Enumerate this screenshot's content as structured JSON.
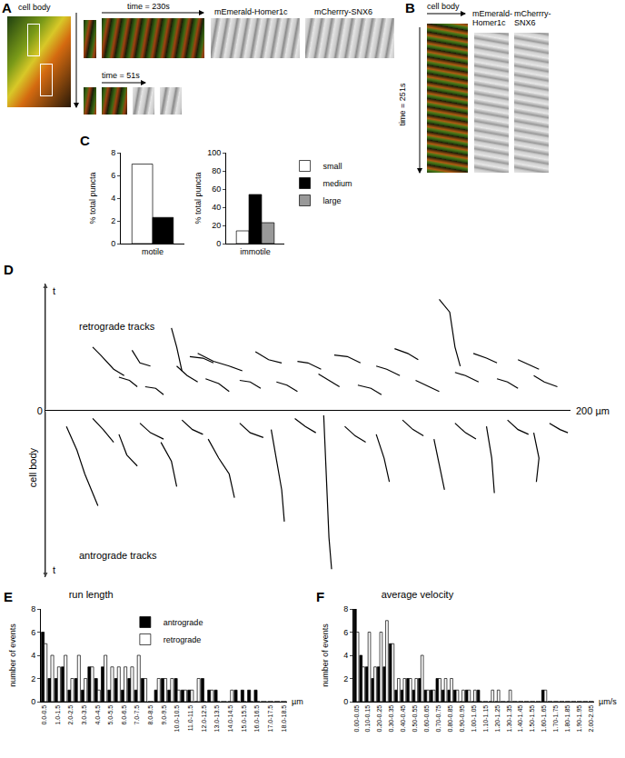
{
  "panel_labels": [
    "A",
    "B",
    "C",
    "D",
    "E",
    "F"
  ],
  "images": {
    "A": {
      "cell_body": "cell body",
      "time_long": "time = 230s",
      "time_short": "time = 51s",
      "channels": [
        "mEmerald-Homer1c",
        "mCherrry-SNX6"
      ]
    },
    "B": {
      "cell_body": "cell body",
      "time": "time = 251s",
      "channels": [
        "mEmerald-Homer1c",
        "mCherrry-SNX6"
      ]
    }
  },
  "chart_data": [
    {
      "type": "bar",
      "categories": [
        "motile"
      ],
      "series": [
        {
          "name": "small",
          "color": "#ffffff",
          "values": [
            7
          ]
        },
        {
          "name": "medium",
          "color": "#000000",
          "values": [
            2.3
          ]
        }
      ],
      "y_label": "% total puncta",
      "ylim": [
        0,
        8
      ],
      "yticks": [
        0,
        2,
        4,
        6,
        8
      ]
    },
    {
      "type": "bar",
      "categories": [
        "immotile"
      ],
      "series": [
        {
          "name": "small",
          "color": "#ffffff",
          "values": [
            14
          ]
        },
        {
          "name": "medium",
          "color": "#000000",
          "values": [
            54
          ]
        },
        {
          "name": "large",
          "color": "#999999",
          "values": [
            23
          ]
        }
      ],
      "y_label": "% total puncta",
      "ylim": [
        0,
        100
      ],
      "yticks": [
        0,
        20,
        40,
        60,
        80,
        100
      ],
      "legend": "right"
    },
    {
      "type": "line",
      "y_label": "t",
      "xlim": [
        0,
        200
      ],
      "ylim": [
        -105,
        80
      ],
      "yticks": [
        0
      ],
      "tick_labels": "y",
      "annotations": [
        {
          "text": "cell body"
        },
        {
          "text": "200 µm"
        }
      ],
      "series": [
        {
          "name": "retrograde tracks",
          "color": "#000000",
          "paths": [
            [
              [
                30,
                22
              ],
              [
                26,
                26
              ],
              [
                21,
                35
              ],
              [
                18,
                40
              ]
            ],
            [
              [
                35,
                15
              ],
              [
                32,
                19
              ],
              [
                28,
                21
              ]
            ],
            [
              [
                40,
                28
              ],
              [
                36,
                30
              ],
              [
                33,
                38
              ]
            ],
            [
              [
                45,
                10
              ],
              [
                42,
                14
              ],
              [
                38,
                15
              ]
            ],
            [
              [
                52,
                25
              ],
              [
                50,
                40
              ],
              [
                48,
                52
              ]
            ],
            [
              [
                58,
                18
              ],
              [
                54,
                22
              ],
              [
                50,
                28
              ]
            ],
            [
              [
                64,
                30
              ],
              [
                60,
                33
              ],
              [
                55,
                34
              ]
            ],
            [
              [
                70,
                12
              ],
              [
                66,
                17
              ],
              [
                61,
                20
              ]
            ],
            [
              [
                75,
                25
              ],
              [
                70,
                28
              ],
              [
                64,
                31
              ],
              [
                58,
                36
              ]
            ],
            [
              [
                82,
                14
              ],
              [
                78,
                18
              ],
              [
                74,
                19
              ]
            ],
            [
              [
                90,
                30
              ],
              [
                85,
                32
              ],
              [
                80,
                37
              ]
            ],
            [
              [
                96,
                12
              ],
              [
                92,
                16
              ],
              [
                88,
                18
              ]
            ],
            [
              [
                105,
                26
              ],
              [
                100,
                30
              ],
              [
                96,
                31
              ]
            ],
            [
              [
                112,
                15
              ],
              [
                108,
                19
              ],
              [
                104,
                23
              ]
            ],
            [
              [
                120,
                30
              ],
              [
                115,
                34
              ],
              [
                110,
                35
              ]
            ],
            [
              [
                128,
                10
              ],
              [
                124,
                14
              ],
              [
                119,
                16
              ]
            ],
            [
              [
                135,
                22
              ],
              [
                130,
                26
              ],
              [
                126,
                28
              ]
            ],
            [
              [
                142,
                32
              ],
              [
                138,
                36
              ],
              [
                133,
                39
              ]
            ],
            [
              [
                150,
                12
              ],
              [
                145,
                16
              ],
              [
                141,
                19
              ]
            ],
            [
              [
                158,
                28
              ],
              [
                156,
                40
              ],
              [
                154,
                62
              ],
              [
                150,
                70
              ]
            ],
            [
              [
                165,
                18
              ],
              [
                160,
                22
              ],
              [
                156,
                24
              ]
            ],
            [
              [
                172,
                30
              ],
              [
                168,
                33
              ],
              [
                163,
                36
              ]
            ],
            [
              [
                180,
                14
              ],
              [
                176,
                18
              ],
              [
                172,
                20
              ]
            ],
            [
              [
                188,
                26
              ],
              [
                184,
                29
              ],
              [
                180,
                32
              ]
            ],
            [
              [
                195,
                15
              ],
              [
                190,
                18
              ],
              [
                186,
                22
              ]
            ]
          ]
        },
        {
          "name": "antrograde tracks",
          "color": "#000000",
          "paths": [
            [
              [
                8,
                -10
              ],
              [
                12,
                -25
              ],
              [
                15,
                -40
              ],
              [
                20,
                -60
              ]
            ],
            [
              [
                18,
                -5
              ],
              [
                22,
                -12
              ],
              [
                26,
                -20
              ]
            ],
            [
              [
                28,
                -15
              ],
              [
                31,
                -28
              ],
              [
                35,
                -35
              ]
            ],
            [
              [
                36,
                -8
              ],
              [
                40,
                -14
              ],
              [
                45,
                -18
              ]
            ],
            [
              [
                44,
                -20
              ],
              [
                48,
                -32
              ],
              [
                50,
                -48
              ]
            ],
            [
              [
                52,
                -6
              ],
              [
                56,
                -12
              ],
              [
                60,
                -15
              ]
            ],
            [
              [
                62,
                -18
              ],
              [
                66,
                -30
              ],
              [
                70,
                -40
              ],
              [
                72,
                -55
              ]
            ],
            [
              [
                74,
                -8
              ],
              [
                78,
                -14
              ],
              [
                83,
                -17
              ]
            ],
            [
              [
                86,
                -12
              ],
              [
                88,
                -30
              ],
              [
                90,
                -50
              ],
              [
                91,
                -70
              ]
            ],
            [
              [
                95,
                -5
              ],
              [
                99,
                -10
              ],
              [
                103,
                -14
              ]
            ],
            [
              [
                106,
                -3
              ],
              [
                107,
                -40
              ],
              [
                108,
                -80
              ],
              [
                109,
                -100
              ]
            ],
            [
              [
                114,
                -10
              ],
              [
                118,
                -16
              ],
              [
                122,
                -20
              ]
            ],
            [
              [
                126,
                -15
              ],
              [
                129,
                -30
              ],
              [
                131,
                -45
              ]
            ],
            [
              [
                136,
                -6
              ],
              [
                140,
                -12
              ],
              [
                144,
                -16
              ]
            ],
            [
              [
                148,
                -18
              ],
              [
                150,
                -35
              ],
              [
                152,
                -50
              ]
            ],
            [
              [
                156,
                -8
              ],
              [
                160,
                -14
              ],
              [
                164,
                -18
              ]
            ],
            [
              [
                168,
                -10
              ],
              [
                170,
                -30
              ],
              [
                171,
                -52
              ]
            ],
            [
              [
                176,
                -6
              ],
              [
                180,
                -12
              ],
              [
                184,
                -15
              ]
            ],
            [
              [
                186,
                -14
              ],
              [
                188,
                -30
              ],
              [
                187,
                -45
              ]
            ],
            [
              [
                192,
                -8
              ],
              [
                196,
                -12
              ],
              [
                199,
                -14
              ]
            ]
          ]
        }
      ]
    },
    {
      "type": "bar",
      "title": "run length",
      "x_label": "µm",
      "y_label": "number of events",
      "categories": [
        "0.0-0.5",
        null,
        "1.0-1.5",
        null,
        "2.0-2.5",
        null,
        "3.0-3.5",
        null,
        "4.0-4.5",
        null,
        "5.0-5.5",
        null,
        "6.0-6.5",
        null,
        "7.0-7.5",
        null,
        "8.0-8.5",
        null,
        "9.0-9.5",
        null,
        "10.0-10.5",
        null,
        "11.0-11.5",
        null,
        "12.0-12.5",
        null,
        "13.0-13.5",
        null,
        "14.0-14.5",
        null,
        "15.0-15.5",
        null,
        "16.0-16.5",
        null,
        "17.0-17.5",
        null,
        "18.0-18.5"
      ],
      "series": [
        {
          "name": "antrograde",
          "color": "#000000",
          "values": [
            6,
            2,
            2,
            3,
            1,
            2,
            1,
            3,
            2,
            3,
            1,
            2,
            1,
            2,
            1,
            2,
            0,
            1,
            2,
            1,
            2,
            1,
            1,
            0,
            2,
            1,
            1,
            0,
            0,
            1,
            1,
            1,
            1,
            0,
            0,
            0,
            0
          ]
        },
        {
          "name": "retrograde",
          "color": "#ffffff",
          "values": [
            5,
            4,
            3,
            4,
            2,
            4,
            2,
            3,
            1,
            4,
            3,
            3,
            3,
            3,
            4,
            2,
            0,
            2,
            2,
            2,
            1,
            1,
            1,
            2,
            0,
            1,
            0,
            0,
            1,
            0,
            0,
            0,
            0,
            0,
            0,
            0,
            0
          ]
        }
      ],
      "ylim": [
        0,
        8
      ],
      "yticks": [
        0,
        2,
        4,
        6,
        8
      ],
      "legend": "top"
    },
    {
      "type": "bar",
      "title": "average velocity",
      "x_label": "µm/s",
      "y_label": "number of events",
      "categories": [
        "0.00-0.05",
        null,
        "0.10-0.15",
        null,
        "0.20-0.25",
        null,
        "0.30-0.35",
        null,
        "0.40-0.45",
        null,
        "0.50-0.55",
        null,
        "0.60-0.65",
        null,
        "0.70-0.75",
        null,
        "0.80-0.85",
        null,
        "0.90-0.95",
        null,
        "1.00-1.05",
        null,
        "1.10-1.15",
        null,
        "1.20-1.25",
        null,
        "1.30-1.35",
        null,
        "1.40-1.45",
        null,
        "1.50-1.55",
        null,
        "1.60-1.65",
        null,
        "1.70-1.75",
        null,
        "1.80-1.85",
        null,
        "1.90-1.95",
        null,
        "2.00-2.05"
      ],
      "series": [
        {
          "name": "antrograde",
          "color": "#000000",
          "values": [
            8,
            4,
            3,
            2,
            3,
            3,
            5,
            1,
            1,
            2,
            1,
            2,
            1,
            1,
            2,
            1,
            1,
            1,
            0,
            1,
            0,
            1,
            0,
            0,
            0,
            0,
            0,
            0,
            0,
            0,
            0,
            0,
            1,
            0,
            0,
            0,
            0,
            0,
            0,
            0,
            0
          ]
        },
        {
          "name": "retrograde",
          "color": "#ffffff",
          "values": [
            6,
            3,
            6,
            3,
            6,
            7,
            5,
            2,
            2,
            2,
            2,
            4,
            1,
            1,
            2,
            2,
            2,
            1,
            1,
            1,
            1,
            0,
            0,
            1,
            1,
            0,
            1,
            0,
            0,
            0,
            0,
            0,
            1,
            0,
            0,
            0,
            0,
            0,
            0,
            0,
            0
          ]
        }
      ],
      "ylim": [
        0,
        8
      ],
      "yticks": [
        0,
        2,
        4,
        6,
        8
      ]
    }
  ]
}
